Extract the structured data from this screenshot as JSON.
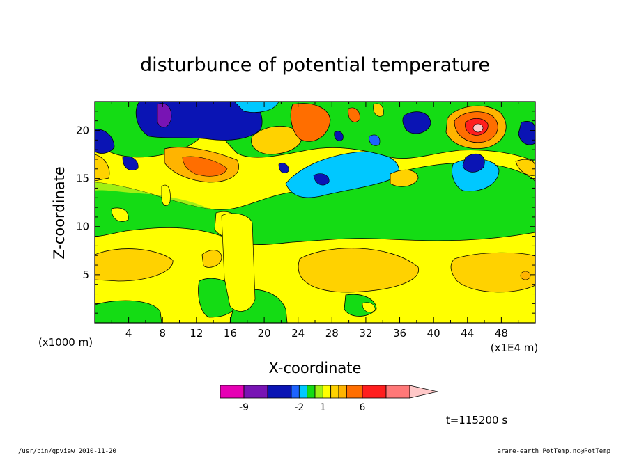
{
  "chart_data": {
    "type": "heatmap",
    "title": "disturbunce of potential temperature",
    "xlabel": "X-coordinate",
    "ylabel": "Z-coordinate",
    "x_unit_label": "(x1E4 m)",
    "y_unit_label": "(x1000 m)",
    "xlim": [
      0,
      52
    ],
    "ylim": [
      0,
      23
    ],
    "x_ticks": [
      "4",
      "8",
      "12",
      "16",
      "20",
      "24",
      "28",
      "32",
      "36",
      "40",
      "44",
      "48"
    ],
    "x_tick_values": [
      4,
      8,
      12,
      16,
      20,
      24,
      28,
      32,
      36,
      40,
      44,
      48
    ],
    "y_ticks": [
      "5",
      "10",
      "15",
      "20"
    ],
    "y_tick_values": [
      5,
      10,
      15,
      20
    ],
    "colorbar": {
      "labels": [
        "-9",
        "-2",
        "1",
        "6"
      ],
      "label_values": [
        -9,
        -2,
        1,
        6
      ],
      "levels": [
        -12,
        -9,
        -6,
        -3,
        -2,
        -1,
        0,
        1,
        2,
        3,
        4,
        6,
        9,
        12
      ],
      "colors": [
        "#e600b4",
        "#7814b4",
        "#0a14b4",
        "#1e64ff",
        "#00c8ff",
        "#14dc14",
        "#a0f014",
        "#ffff00",
        "#ffd200",
        "#ffb400",
        "#ff6e00",
        "#ff1e1e",
        "#ff7878",
        "#ffc8c8"
      ]
    },
    "time_label": "t=115200 s"
  },
  "footer": {
    "left": "/usr/bin/gpview   2010-11-20",
    "right": "arare-earth_PotTemp.nc@PotTemp"
  }
}
